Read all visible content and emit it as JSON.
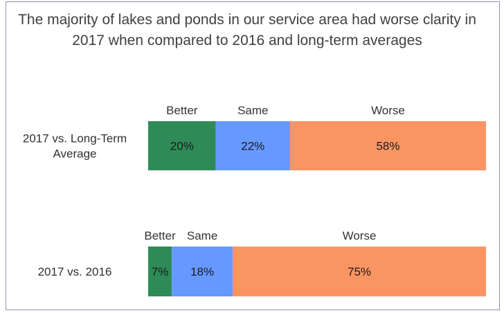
{
  "title_line1": "The majority of lakes and ponds in our service area had worse clarity in",
  "title_line2": "2017 when compared to 2016 and long-term averages",
  "chart_data": {
    "type": "bar",
    "orientation": "horizontal",
    "stacked": true,
    "percent": true,
    "title": "The majority of lakes and ponds in our service area had worse clarity in 2017 when compared to 2016 and long-term averages",
    "categories": [
      [
        "2017 vs. Long-Term",
        "Average"
      ],
      [
        "2017 vs. 2016"
      ]
    ],
    "series": [
      {
        "name": "Better",
        "color": "#2e8b57",
        "values": [
          20,
          7
        ]
      },
      {
        "name": "Same",
        "color": "#6699ff",
        "values": [
          22,
          18
        ]
      },
      {
        "name": "Worse",
        "color": "#fa9563",
        "values": [
          58,
          75
        ]
      }
    ],
    "data_labels": [
      [
        "20%",
        "22%",
        "58%"
      ],
      [
        "7%",
        "18%",
        "75%"
      ]
    ],
    "xlim": [
      0,
      100
    ],
    "grid": false,
    "legend": "segment labels above each bar"
  }
}
